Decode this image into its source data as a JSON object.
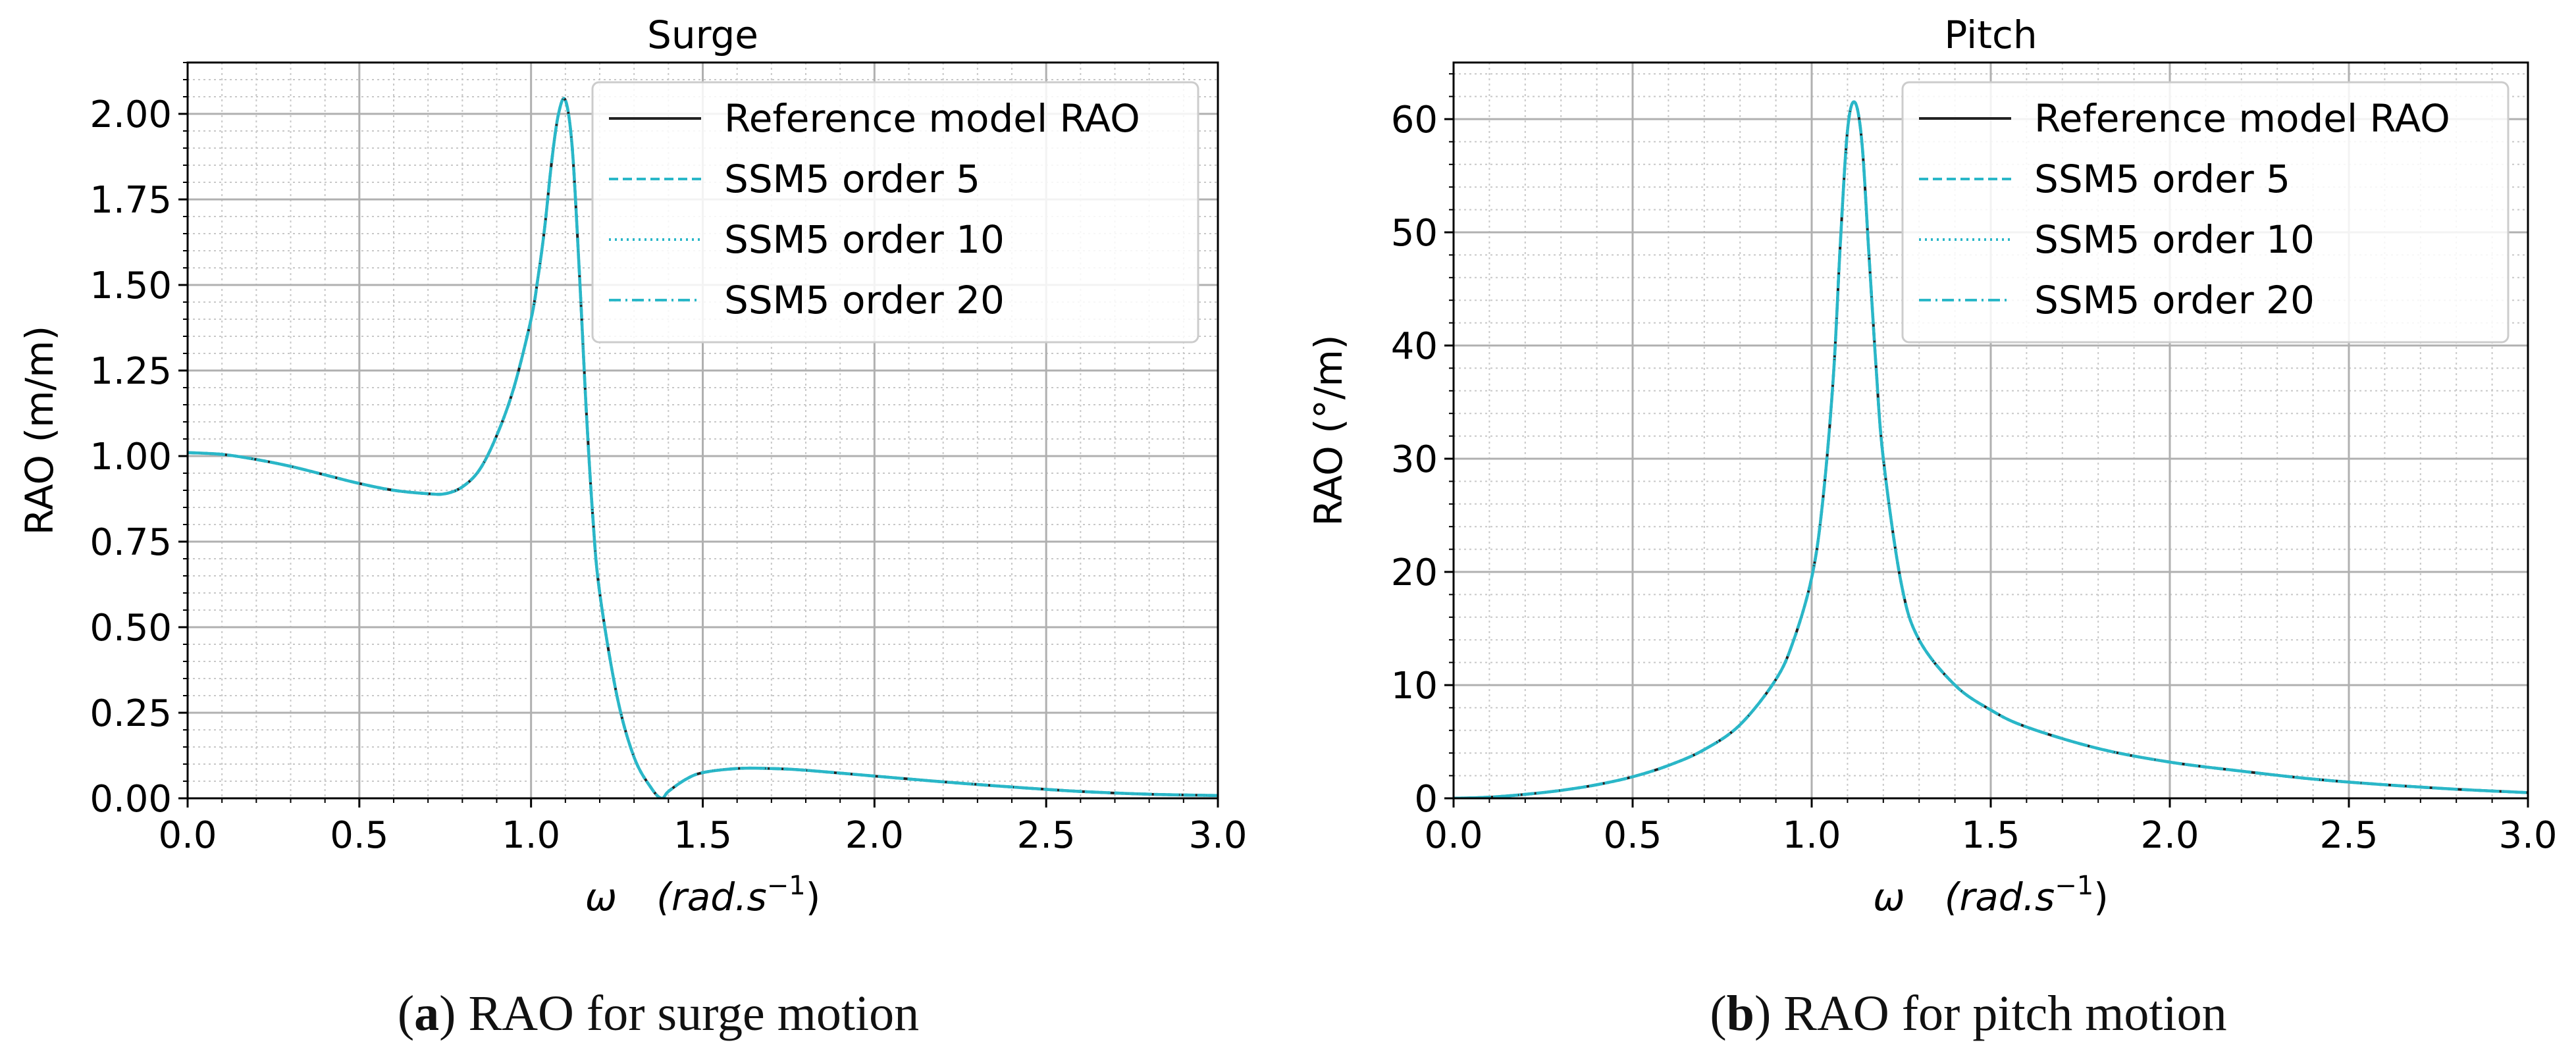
{
  "chart_data": [
    {
      "type": "line",
      "title": "Surge",
      "xlabel_symbol": "ω",
      "xlabel_unit_base": "(rad.s",
      "xlabel_unit_exp": "−1",
      "xlabel_unit_close": ")",
      "ylabel": "RAO (m/m)",
      "xlim": [
        0.0,
        3.0
      ],
      "ylim": [
        0.0,
        2.15
      ],
      "x_ticks": [
        0.0,
        0.5,
        1.0,
        1.5,
        2.0,
        2.5,
        3.0
      ],
      "x_tick_labels": [
        "0.0",
        "0.5",
        "1.0",
        "1.5",
        "2.0",
        "2.5",
        "3.0"
      ],
      "y_ticks": [
        0.0,
        0.25,
        0.5,
        0.75,
        1.0,
        1.25,
        1.5,
        1.75,
        2.0
      ],
      "y_tick_labels": [
        "0.00",
        "0.25",
        "0.50",
        "0.75",
        "1.00",
        "1.25",
        "1.50",
        "1.75",
        "2.00"
      ],
      "x_minor_step": 0.1,
      "y_minor_step": 0.05,
      "grid": true,
      "legend_position": "top-right",
      "x": [
        0.0,
        0.1,
        0.2,
        0.3,
        0.4,
        0.5,
        0.6,
        0.7,
        0.75,
        0.8,
        0.85,
        0.9,
        0.95,
        1.0,
        1.02,
        1.04,
        1.06,
        1.08,
        1.1,
        1.12,
        1.14,
        1.16,
        1.18,
        1.2,
        1.25,
        1.3,
        1.35,
        1.38,
        1.4,
        1.45,
        1.5,
        1.6,
        1.7,
        1.8,
        2.0,
        2.2,
        2.4,
        2.6,
        2.8,
        3.0
      ],
      "series": [
        {
          "name": "Reference model RAO",
          "color": "#222222",
          "dash": "solid",
          "values": [
            1.01,
            1.005,
            0.99,
            0.97,
            0.945,
            0.92,
            0.9,
            0.89,
            0.89,
            0.91,
            0.96,
            1.06,
            1.2,
            1.4,
            1.52,
            1.67,
            1.86,
            2.0,
            2.04,
            1.9,
            1.55,
            1.15,
            0.82,
            0.6,
            0.3,
            0.12,
            0.03,
            0.0,
            0.02,
            0.055,
            0.075,
            0.087,
            0.087,
            0.082,
            0.065,
            0.048,
            0.033,
            0.02,
            0.012,
            0.008
          ]
        },
        {
          "name": "SSM5 order 5",
          "color": "#2ab7c8",
          "dash": "dashed",
          "values": [
            1.01,
            1.005,
            0.99,
            0.97,
            0.945,
            0.92,
            0.9,
            0.89,
            0.89,
            0.91,
            0.96,
            1.06,
            1.2,
            1.4,
            1.52,
            1.67,
            1.86,
            2.0,
            2.04,
            1.9,
            1.55,
            1.15,
            0.82,
            0.6,
            0.3,
            0.12,
            0.03,
            0.0,
            0.02,
            0.055,
            0.075,
            0.087,
            0.087,
            0.082,
            0.065,
            0.048,
            0.033,
            0.02,
            0.012,
            0.008
          ]
        },
        {
          "name": "SSM5 order 10",
          "color": "#2ab7c8",
          "dash": "dotted",
          "values": [
            1.01,
            1.005,
            0.99,
            0.97,
            0.945,
            0.92,
            0.9,
            0.89,
            0.89,
            0.91,
            0.96,
            1.06,
            1.2,
            1.4,
            1.52,
            1.67,
            1.86,
            2.0,
            2.04,
            1.9,
            1.55,
            1.15,
            0.82,
            0.6,
            0.3,
            0.12,
            0.03,
            0.0,
            0.02,
            0.055,
            0.075,
            0.087,
            0.087,
            0.082,
            0.065,
            0.048,
            0.033,
            0.02,
            0.012,
            0.008
          ]
        },
        {
          "name": "SSM5 order 20",
          "color": "#2ab7c8",
          "dash": "dashdot",
          "values": [
            1.01,
            1.005,
            0.99,
            0.97,
            0.945,
            0.92,
            0.9,
            0.89,
            0.89,
            0.91,
            0.96,
            1.06,
            1.2,
            1.4,
            1.52,
            1.67,
            1.86,
            2.0,
            2.04,
            1.9,
            1.55,
            1.15,
            0.82,
            0.6,
            0.3,
            0.12,
            0.03,
            0.0,
            0.02,
            0.055,
            0.075,
            0.087,
            0.087,
            0.082,
            0.065,
            0.048,
            0.033,
            0.02,
            0.012,
            0.008
          ]
        }
      ],
      "caption_letter": "a",
      "caption_text": ") RAO for surge motion"
    },
    {
      "type": "line",
      "title": "Pitch",
      "xlabel_symbol": "ω",
      "xlabel_unit_base": "(rad.s",
      "xlabel_unit_exp": "−1",
      "xlabel_unit_close": ")",
      "ylabel": "RAO (°/m)",
      "xlim": [
        0.0,
        3.0
      ],
      "ylim": [
        0.0,
        65.0
      ],
      "x_ticks": [
        0.0,
        0.5,
        1.0,
        1.5,
        2.0,
        2.5,
        3.0
      ],
      "x_tick_labels": [
        "0.0",
        "0.5",
        "1.0",
        "1.5",
        "2.0",
        "2.5",
        "3.0"
      ],
      "y_ticks": [
        0,
        10,
        20,
        30,
        40,
        50,
        60
      ],
      "y_tick_labels": [
        "0",
        "10",
        "20",
        "30",
        "40",
        "50",
        "60"
      ],
      "x_minor_step": 0.1,
      "y_minor_step": 2,
      "grid": true,
      "legend_position": "top-right",
      "x": [
        0.0,
        0.1,
        0.2,
        0.3,
        0.4,
        0.5,
        0.6,
        0.7,
        0.8,
        0.9,
        0.95,
        1.0,
        1.03,
        1.06,
        1.08,
        1.1,
        1.12,
        1.14,
        1.16,
        1.18,
        1.2,
        1.25,
        1.3,
        1.4,
        1.5,
        1.6,
        1.8,
        2.0,
        2.2,
        2.4,
        2.6,
        2.8,
        3.0
      ],
      "series": [
        {
          "name": "Reference model RAO",
          "color": "#222222",
          "dash": "solid",
          "values": [
            0.0,
            0.1,
            0.35,
            0.7,
            1.2,
            1.9,
            2.9,
            4.3,
            6.5,
            10.5,
            14.0,
            19.5,
            26.0,
            37.0,
            49.0,
            59.0,
            61.5,
            58.0,
            48.0,
            38.0,
            30.0,
            19.0,
            14.0,
            10.0,
            7.8,
            6.3,
            4.4,
            3.2,
            2.4,
            1.7,
            1.2,
            0.8,
            0.5
          ]
        },
        {
          "name": "SSM5 order 5",
          "color": "#2ab7c8",
          "dash": "dashed",
          "values": [
            0.0,
            0.1,
            0.35,
            0.7,
            1.2,
            1.9,
            2.9,
            4.3,
            6.5,
            10.5,
            14.0,
            19.5,
            26.0,
            37.0,
            49.0,
            59.0,
            61.5,
            58.0,
            48.0,
            38.0,
            30.0,
            19.0,
            14.0,
            10.0,
            7.8,
            6.3,
            4.4,
            3.2,
            2.4,
            1.7,
            1.2,
            0.8,
            0.5
          ]
        },
        {
          "name": "SSM5 order 10",
          "color": "#2ab7c8",
          "dash": "dotted",
          "values": [
            0.0,
            0.1,
            0.35,
            0.7,
            1.2,
            1.9,
            2.9,
            4.3,
            6.5,
            10.5,
            14.0,
            19.5,
            26.0,
            37.0,
            49.0,
            59.0,
            61.5,
            58.0,
            48.0,
            38.0,
            30.0,
            19.0,
            14.0,
            10.0,
            7.8,
            6.3,
            4.4,
            3.2,
            2.4,
            1.7,
            1.2,
            0.8,
            0.5
          ]
        },
        {
          "name": "SSM5 order 20",
          "color": "#2ab7c8",
          "dash": "dashdot",
          "values": [
            0.0,
            0.1,
            0.35,
            0.7,
            1.2,
            1.9,
            2.9,
            4.3,
            6.5,
            10.5,
            14.0,
            19.5,
            26.0,
            37.0,
            49.0,
            59.0,
            61.5,
            58.0,
            48.0,
            38.0,
            30.0,
            19.0,
            14.0,
            10.0,
            7.8,
            6.3,
            4.4,
            3.2,
            2.4,
            1.7,
            1.2,
            0.8,
            0.5
          ]
        }
      ],
      "caption_letter": "b",
      "caption_text": ") RAO for pitch motion"
    }
  ]
}
